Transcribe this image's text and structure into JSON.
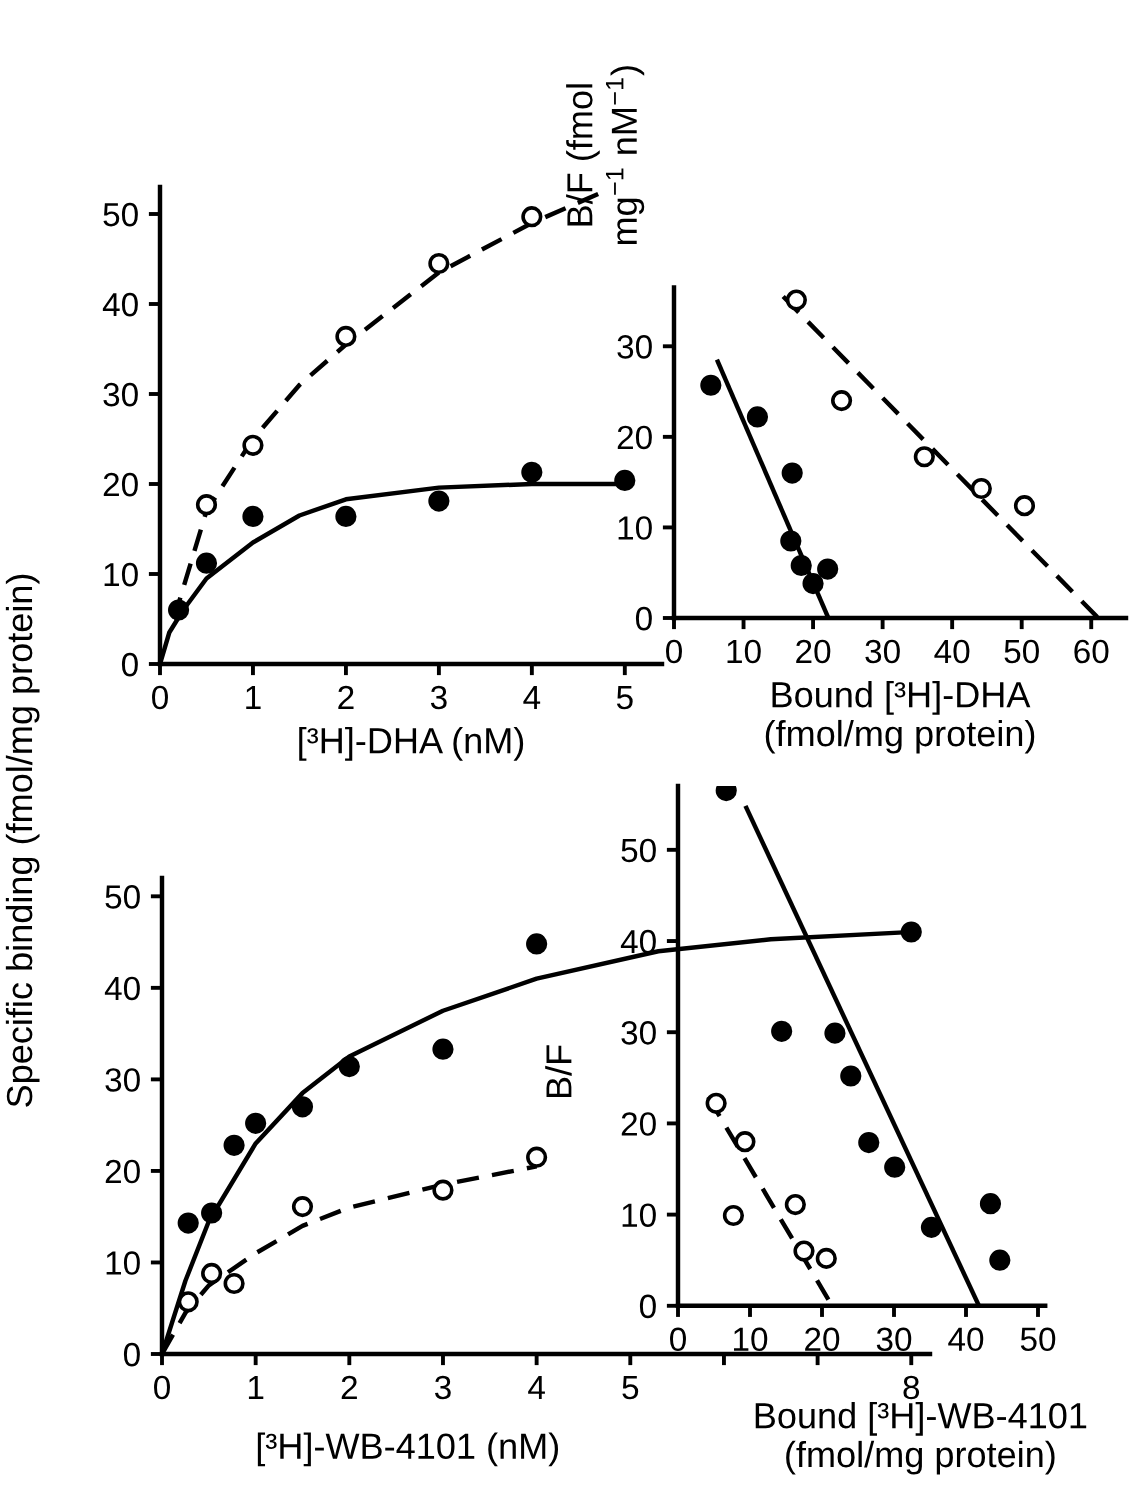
{
  "chart_data": [
    {
      "type": "scatter",
      "xlabel": "[³H]-DHA (nM)",
      "ylabel": "Specific binding (fmol/mg protein)",
      "xlim": [
        0,
        5.4
      ],
      "ylim": [
        0,
        53
      ],
      "xticks": [
        0,
        1,
        2,
        3,
        4,
        5
      ],
      "yticks": [
        0,
        10,
        20,
        30,
        40,
        50
      ],
      "series": [
        {
          "type": "line",
          "x": [
            0,
            0.1,
            0.25,
            0.5,
            1,
            1.5,
            2,
            3,
            4,
            5
          ],
          "values": [
            0,
            3.5,
            6,
            9.5,
            13.5,
            16.5,
            18.3,
            19.6,
            20,
            20
          ],
          "color": "#000000",
          "marker": "none",
          "line_style": "solid"
        },
        {
          "type": "line",
          "x": [
            0.15,
            0.5,
            1,
            1.5,
            2,
            3,
            4,
            4.73
          ],
          "values": [
            5,
            17,
            25,
            31,
            35.5,
            43.5,
            49,
            52.3
          ],
          "color": "#000000",
          "marker": "none",
          "line_style": "dashed"
        },
        {
          "type": "scatter",
          "x": [
            0.2,
            0.5,
            1,
            2,
            3,
            4,
            5
          ],
          "values": [
            6,
            11.2,
            16.4,
            16.4,
            18.1,
            21.3,
            20.4
          ],
          "color": "#000000",
          "marker": "circle"
        },
        {
          "type": "scatter",
          "x": [
            0.5,
            1,
            2,
            3,
            4
          ],
          "values": [
            17.7,
            24.3,
            36.4,
            44.5,
            49.7
          ],
          "color": "#ffffff",
          "marker": "circle"
        }
      ]
    },
    {
      "type": "scatter",
      "xlabel": "Bound [³H]-DHA\n(fmol/mg protein)",
      "ylabel": "B/F (fmol\nmg$^{−1}$ nM$^{−1}$)",
      "xlim": [
        0,
        65
      ],
      "ylim": [
        0,
        36.5
      ],
      "xticks": [
        0,
        10,
        20,
        30,
        40,
        50,
        60
      ],
      "yticks": [
        0,
        10,
        20,
        30
      ],
      "series": [
        {
          "type": "line",
          "x": [
            6.3,
            22.2
          ],
          "values": [
            28.3,
            0
          ],
          "color": "#000000",
          "marker": "none",
          "line_style": "solid"
        },
        {
          "type": "line",
          "x": [
            15.7,
            61
          ],
          "values": [
            35.5,
            0
          ],
          "color": "#000000",
          "marker": "none",
          "line_style": "dashed"
        },
        {
          "type": "scatter",
          "x": [
            5.3,
            12,
            17,
            16.8,
            18.3,
            20,
            22.1
          ],
          "values": [
            25.7,
            22.2,
            16,
            8.5,
            5.8,
            3.8,
            5.4
          ],
          "color": "#000000",
          "marker": "circle"
        },
        {
          "type": "scatter",
          "x": [
            17.6,
            24.1,
            36,
            44.2,
            50.4
          ],
          "values": [
            35.1,
            24,
            17.8,
            14.3,
            12.4
          ],
          "color": "#ffffff",
          "marker": "circle"
        }
      ]
    },
    {
      "type": "scatter",
      "xlabel": "[³H]-WB-4101 (nM)",
      "xlim": [
        0,
        8.2
      ],
      "ylim": [
        0,
        52
      ],
      "xticks": [
        0,
        1,
        2,
        3,
        4,
        5,
        {
          "value": 6,
          "label": null
        },
        {
          "value": 7,
          "label": null
        },
        8
      ],
      "yticks": [
        0,
        10,
        20,
        30,
        40,
        50
      ],
      "series": [
        {
          "type": "line",
          "x": [
            0,
            0.25,
            0.5,
            1,
            1.5,
            2,
            3,
            4,
            5.3,
            6.5,
            8
          ],
          "values": [
            0,
            8,
            14.5,
            23,
            28.5,
            32.5,
            37.5,
            41,
            44,
            45.3,
            46.1
          ],
          "color": "#000000",
          "marker": "none",
          "line_style": "solid"
        },
        {
          "type": "line",
          "x": [
            0,
            0.25,
            0.5,
            1,
            1.5,
            2,
            3,
            4
          ],
          "values": [
            0,
            4.5,
            7.5,
            11,
            14,
            16,
            18.5,
            20.5
          ],
          "color": "#000000",
          "marker": "none",
          "line_style": "dashed"
        },
        {
          "type": "scatter",
          "x": [
            0.28,
            0.53,
            0.77,
            1,
            1.5,
            2,
            3,
            4,
            8
          ],
          "values": [
            14.3,
            15.4,
            22.8,
            25.2,
            27,
            31.4,
            33.3,
            44.8,
            46.1
          ],
          "color": "#000000",
          "marker": "circle"
        },
        {
          "type": "scatter",
          "x": [
            0.28,
            0.53,
            0.77,
            1.5,
            3,
            4
          ],
          "values": [
            5.7,
            8.8,
            7.7,
            16.1,
            17.9,
            21.5
          ],
          "color": "#ffffff",
          "marker": "circle"
        }
      ]
    },
    {
      "type": "scatter",
      "xlabel": "Bound [³H]-WB-4101\n(fmol/mg protein)",
      "ylabel": "B/F",
      "xlim": [
        0,
        51
      ],
      "ylim": [
        0,
        57
      ],
      "xticks": [
        0,
        10,
        20,
        30,
        40,
        50
      ],
      "yticks": [
        0,
        10,
        20,
        30,
        40,
        50
      ],
      "series": [
        {
          "type": "line",
          "x": [
            9.5,
            41.8
          ],
          "values": [
            54.6,
            0
          ],
          "color": "#000000",
          "marker": "none",
          "line_style": "solid"
        },
        {
          "type": "line",
          "x": [
            4.2,
            21.4
          ],
          "values": [
            22.9,
            0
          ],
          "color": "#000000",
          "marker": "none",
          "line_style": "dashed"
        },
        {
          "type": "scatter",
          "x": [
            6.7,
            14.4,
            21.8,
            24,
            26.5,
            30.1,
            35.2,
            43.4,
            44.7
          ],
          "values": [
            56.5,
            30.1,
            29.9,
            25.2,
            17.9,
            15.2,
            8.6,
            11.2,
            5
          ],
          "color": "#000000",
          "marker": "circle"
        },
        {
          "type": "scatter",
          "x": [
            5.3,
            9.3,
            7.7,
            16.3,
            17.5,
            20.6
          ],
          "values": [
            22.2,
            18,
            9.9,
            11.1,
            6,
            5.2
          ],
          "color": "#ffffff",
          "marker": "circle"
        }
      ]
    }
  ]
}
